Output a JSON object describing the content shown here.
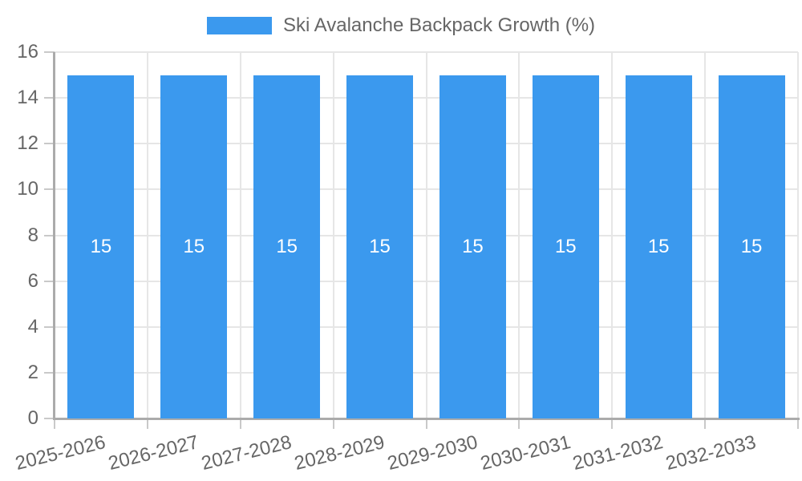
{
  "chart_data": {
    "type": "bar",
    "title": "Ski Avalanche Backpack Growth (%)",
    "categories": [
      "2025-2026",
      "2026-2027",
      "2027-2028",
      "2028-2029",
      "2029-2030",
      "2030-2031",
      "2031-2032",
      "2032-2033"
    ],
    "values": [
      15,
      15,
      15,
      15,
      15,
      15,
      15,
      15
    ],
    "bar_value_labels": [
      "15",
      "15",
      "15",
      "15",
      "15",
      "15",
      "15",
      "15"
    ],
    "series": [
      {
        "name": "Ski Avalanche Backpack Growth (%)",
        "values": [
          15,
          15,
          15,
          15,
          15,
          15,
          15,
          15
        ]
      }
    ],
    "xlabel": "",
    "ylabel": "",
    "ylim": [
      0,
      16
    ],
    "yticks": [
      0,
      2,
      4,
      6,
      8,
      10,
      12,
      14,
      16
    ],
    "grid": true,
    "legend_position": "top",
    "x_tick_rotation_deg": -14,
    "colors": {
      "bar": "#3B99EE",
      "axis_text": "#666666",
      "bar_label_text": "#FFFFFF",
      "gridline": "#E6E6E6",
      "axis_line": "#ABABAB",
      "tick_mark": "#C9C9C9",
      "background": "#FFFFFF"
    }
  }
}
